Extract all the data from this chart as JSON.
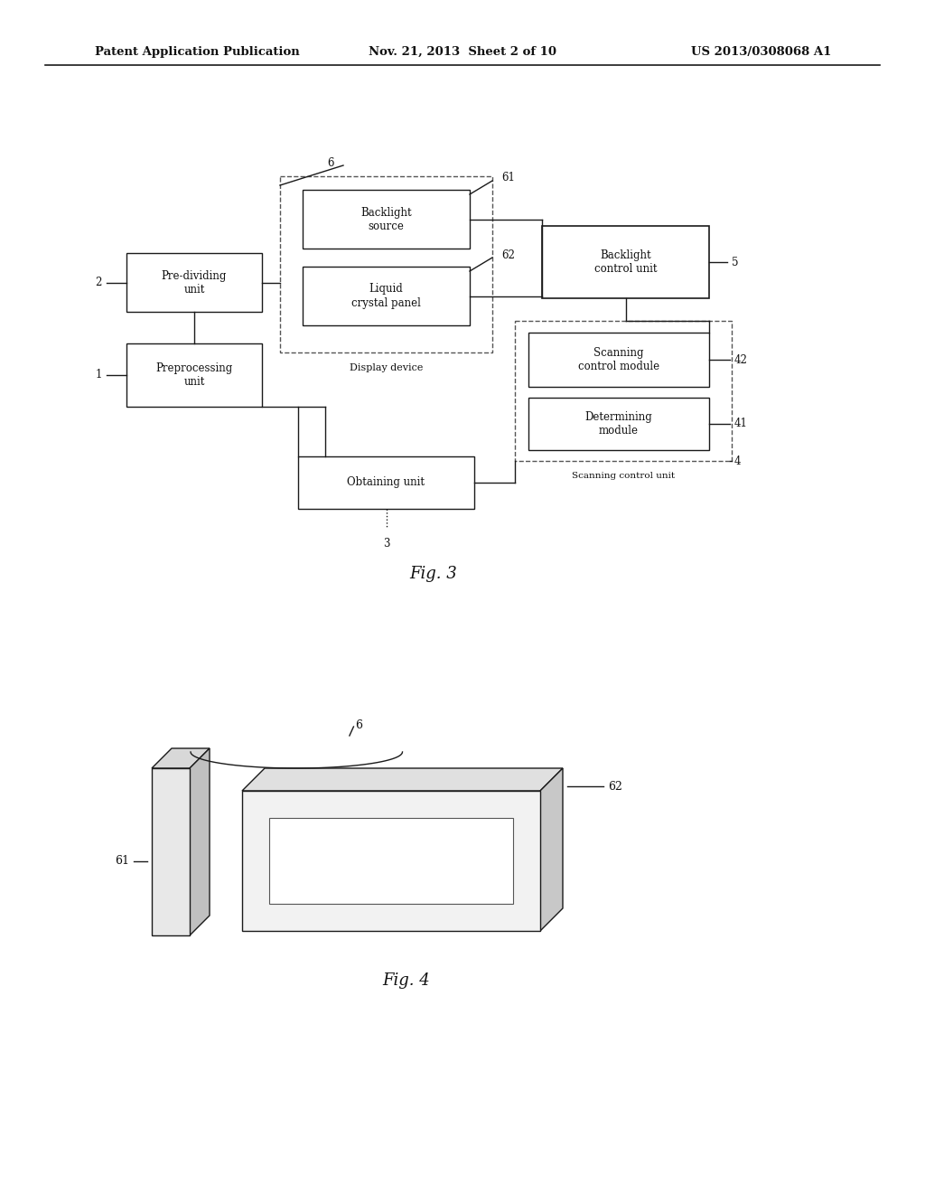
{
  "header_left": "Patent Application Publication",
  "header_mid": "Nov. 21, 2013  Sheet 2 of 10",
  "header_right": "US 2013/0308068 A1",
  "fig3_label": "Fig. 3",
  "fig4_label": "Fig. 4",
  "bg_color": "#ffffff",
  "box_edge_color": "#1a1a1a",
  "text_color": "#111111"
}
